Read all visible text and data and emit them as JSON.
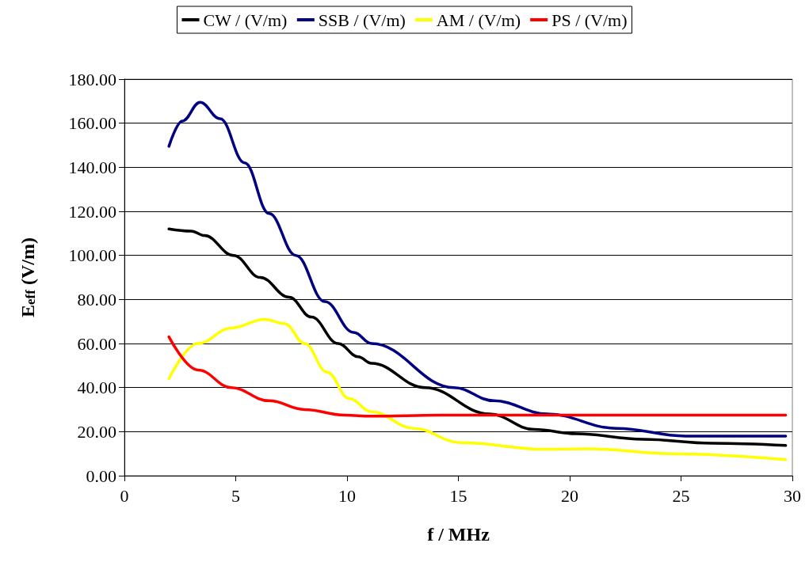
{
  "chart_data": {
    "type": "line",
    "xlabel": "f / MHz",
    "ylabel": "E$_{eff}$ (V/m)",
    "xlim": [
      0,
      30
    ],
    "xticks": [
      0,
      5,
      10,
      15,
      20,
      25,
      30
    ],
    "ylim": [
      0,
      180
    ],
    "yticks": [
      {
        "value": 0,
        "label": "0.00"
      },
      {
        "value": 20,
        "label": "20.00"
      },
      {
        "value": 40,
        "label": "40.00"
      },
      {
        "value": 60,
        "label": "60.00"
      },
      {
        "value": 80,
        "label": "80.00"
      },
      {
        "value": 100,
        "label": "100.00"
      },
      {
        "value": 120,
        "label": "120.00"
      },
      {
        "value": 140,
        "label": "140.00"
      },
      {
        "value": 160,
        "label": "160.00"
      },
      {
        "value": 180,
        "label": "180.00"
      }
    ],
    "grid": "y",
    "legend": "top",
    "marker": "none",
    "line_style": "solid",
    "series": [
      {
        "name": "CW / (V/m)",
        "color": "#000000",
        "x": [
          2,
          3,
          3.6,
          4.9,
          6.1,
          7.4,
          8.4,
          9.6,
          10.5,
          11.1,
          13.5,
          16.4,
          18.4,
          20.3,
          23.3,
          26.4,
          29.7
        ],
        "values": [
          112,
          111,
          109,
          100,
          90,
          81,
          72,
          60,
          54,
          51,
          40,
          28,
          21,
          19,
          16.5,
          14.7,
          13.7
        ]
      },
      {
        "name": "SSB / (V/m)",
        "color": "#000080",
        "x": [
          2,
          2.6,
          3.4,
          4.3,
          5.4,
          6.5,
          7.7,
          9.0,
          10.3,
          11.1,
          14.8,
          16.6,
          19.0,
          22.1,
          25.2,
          29.7
        ],
        "values": [
          149.5,
          161,
          169.5,
          162,
          142,
          119,
          100,
          79,
          65,
          60,
          40,
          34,
          28,
          21.5,
          18,
          18
        ]
      },
      {
        "name": "AM / (V/m)",
        "color": "#ffff00",
        "x": [
          2,
          3.3,
          4.8,
          6.3,
          7.2,
          8.1,
          9.1,
          10.1,
          11.1,
          13.0,
          15.1,
          18.9,
          20.9,
          24.5,
          29.7
        ],
        "values": [
          44,
          60,
          67,
          71,
          69,
          60,
          47,
          35,
          29,
          21.5,
          15,
          12,
          12.2,
          10,
          7.3
        ]
      },
      {
        "name": "PS / (V/m)",
        "color": "#ff0000",
        "x": [
          2,
          3.3,
          4.8,
          6.5,
          8.1,
          9.9,
          11.1,
          14.2,
          29.7
        ],
        "values": [
          63,
          48,
          40,
          34,
          30,
          27.5,
          27,
          27.5,
          27.5
        ]
      }
    ]
  }
}
